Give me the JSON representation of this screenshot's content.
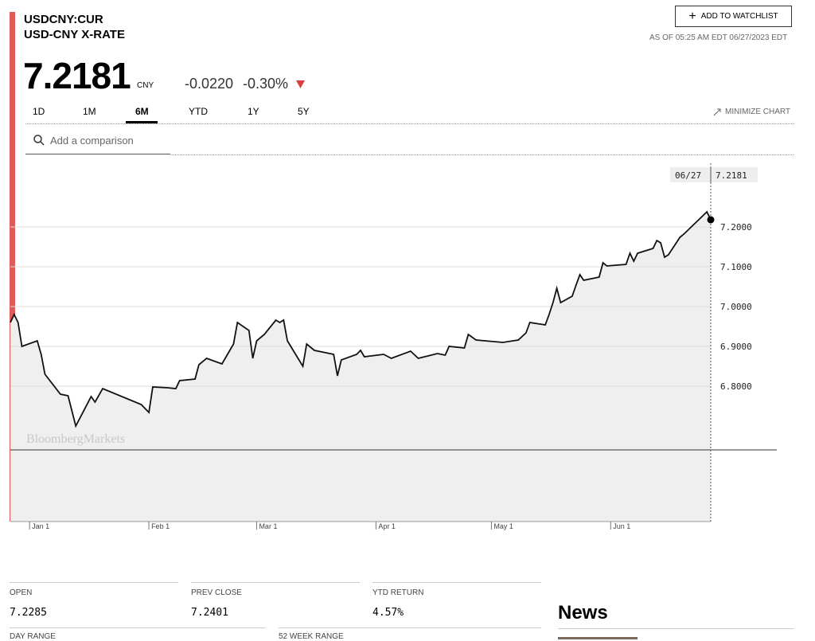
{
  "quote": {
    "ticker": "USDCNY:CUR",
    "name": "USD-CNY X-RATE",
    "price": "7.2181",
    "currency": "CNY",
    "change": "-0.0220",
    "change_pct": "-0.30%",
    "watchlist": "ADD TO WATCHLIST",
    "as_of": "AS OF 05:25 AM EDT 06/27/2023 EDT"
  },
  "tabs": [
    "1D",
    "1M",
    "6M",
    "YTD",
    "1Y",
    "5Y"
  ],
  "minimize": "MINIMIZE CHART",
  "search_placeholder": "Add a comparison",
  "chart_data": {
    "type": "line",
    "watermark": "BloombergMarkets",
    "color": "#111111",
    "fill": "#efefef",
    "x": [
      "12/27",
      "12/28",
      "12/29",
      "12/30",
      "01/03",
      "01/04",
      "01/05",
      "01/09",
      "01/11",
      "01/13",
      "01/17",
      "01/18",
      "01/20",
      "01/30",
      "02/01",
      "02/02",
      "02/06",
      "02/08",
      "02/09",
      "02/13",
      "02/14",
      "02/16",
      "02/20",
      "02/23",
      "02/24",
      "02/27",
      "02/28",
      "03/01",
      "03/03",
      "03/06",
      "03/07",
      "03/08",
      "03/09",
      "03/13",
      "03/14",
      "03/16",
      "03/21",
      "03/22",
      "03/23",
      "03/27",
      "03/28",
      "03/29",
      "04/03",
      "04/05",
      "04/10",
      "04/12",
      "04/17",
      "04/19",
      "04/20",
      "04/24",
      "04/25",
      "04/27",
      "05/04",
      "05/08",
      "05/10",
      "05/11",
      "05/15",
      "05/16",
      "05/17",
      "05/18",
      "05/19",
      "05/22",
      "05/23",
      "05/24",
      "05/25",
      "05/29",
      "05/30",
      "05/31",
      "06/05",
      "06/06",
      "06/07",
      "06/08",
      "06/12",
      "06/13",
      "06/14",
      "06/15",
      "06/16",
      "06/19",
      "06/20",
      "06/26",
      "06/27"
    ],
    "values": [
      6.96,
      6.98,
      6.96,
      6.9,
      6.914,
      6.88,
      6.83,
      6.78,
      6.776,
      6.7,
      6.774,
      6.76,
      6.794,
      6.754,
      6.734,
      6.798,
      6.796,
      6.794,
      6.814,
      6.818,
      6.854,
      6.87,
      6.856,
      6.906,
      6.96,
      6.94,
      6.87,
      6.914,
      6.93,
      6.966,
      6.96,
      6.966,
      6.914,
      6.85,
      6.906,
      6.89,
      6.88,
      6.826,
      6.866,
      6.88,
      6.89,
      6.874,
      6.88,
      6.87,
      6.888,
      6.87,
      6.882,
      6.878,
      6.9,
      6.896,
      6.93,
      6.916,
      6.91,
      6.916,
      6.934,
      6.96,
      6.954,
      6.98,
      7.01,
      7.046,
      7.01,
      7.026,
      7.054,
      7.08,
      7.066,
      7.074,
      7.11,
      7.102,
      7.106,
      7.134,
      7.114,
      7.134,
      7.146,
      7.166,
      7.16,
      7.124,
      7.13,
      7.174,
      7.182,
      7.238,
      7.2181
    ],
    "xlim": [
      "12/27",
      "06/27"
    ],
    "xticks": [
      {
        "value": "01/01",
        "label": "Jan 1"
      },
      {
        "value": "02/01",
        "label": "Feb 1"
      },
      {
        "value": "03/01",
        "label": "Mar 1"
      },
      {
        "value": "04/01",
        "label": "Apr 1"
      },
      {
        "value": "05/01",
        "label": "May 1"
      },
      {
        "value": "06/01",
        "label": "Jun 1"
      }
    ],
    "ylim": [
      6.46,
      7.38
    ],
    "yticks": [
      {
        "value": 6.8,
        "label": "6.8000"
      },
      {
        "value": 6.9,
        "label": "6.9000"
      },
      {
        "value": 7.0,
        "label": "7.0000"
      },
      {
        "value": 7.1,
        "label": "7.1000"
      },
      {
        "value": 7.2,
        "label": "7.2000"
      }
    ],
    "reference_line": 6.64,
    "grid": true
  },
  "stats": [
    {
      "label": "OPEN",
      "value": "7.2285"
    },
    {
      "label": "PREV CLOSE",
      "value": "7.2401"
    },
    {
      "label": "YTD RETURN",
      "value": "4.57%"
    },
    {
      "label": "DAY RANGE"
    },
    {
      "label": "52 WEEK RANGE"
    }
  ],
  "news": "News"
}
